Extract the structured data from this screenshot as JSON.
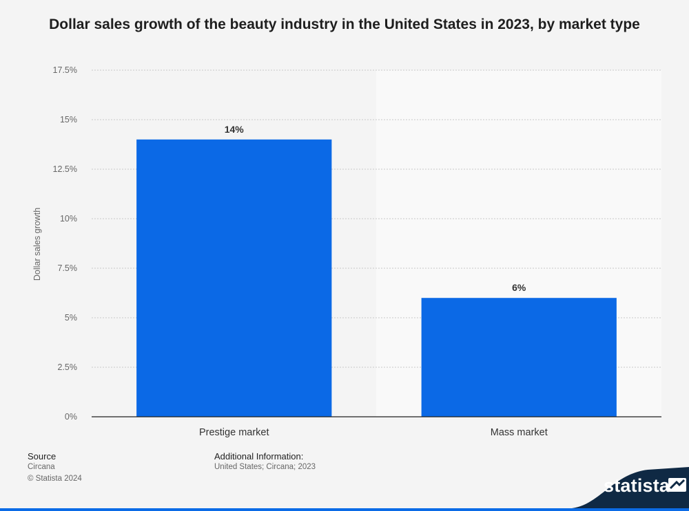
{
  "chart_data": {
    "type": "bar",
    "title": "Dollar sales growth of the beauty industry in the United States in 2023, by market type",
    "categories": [
      "Prestige market",
      "Mass market"
    ],
    "values": [
      14,
      6
    ],
    "value_labels": [
      "14%",
      "6%"
    ],
    "xlabel": "",
    "ylabel": "Dollar sales growth",
    "ylim": [
      0,
      17.5
    ],
    "yticks": [
      0,
      2.5,
      5,
      7.5,
      10,
      12.5,
      15,
      17.5
    ],
    "ytick_labels": [
      "0%",
      "2.5%",
      "5%",
      "7.5%",
      "10%",
      "12.5%",
      "15%",
      "17.5%"
    ],
    "grid": true,
    "bar_color": "#0b69e6"
  },
  "footer": {
    "source_label": "Source",
    "source_value": "Circana",
    "copyright": "© Statista 2024",
    "additional_label": "Additional Information:",
    "additional_value": "United States; Circana; 2023"
  },
  "brand": {
    "name": "statista",
    "logo_icon": "statista-mark-icon",
    "band_color": "#0b6be6",
    "dark_color": "#0f2944"
  }
}
